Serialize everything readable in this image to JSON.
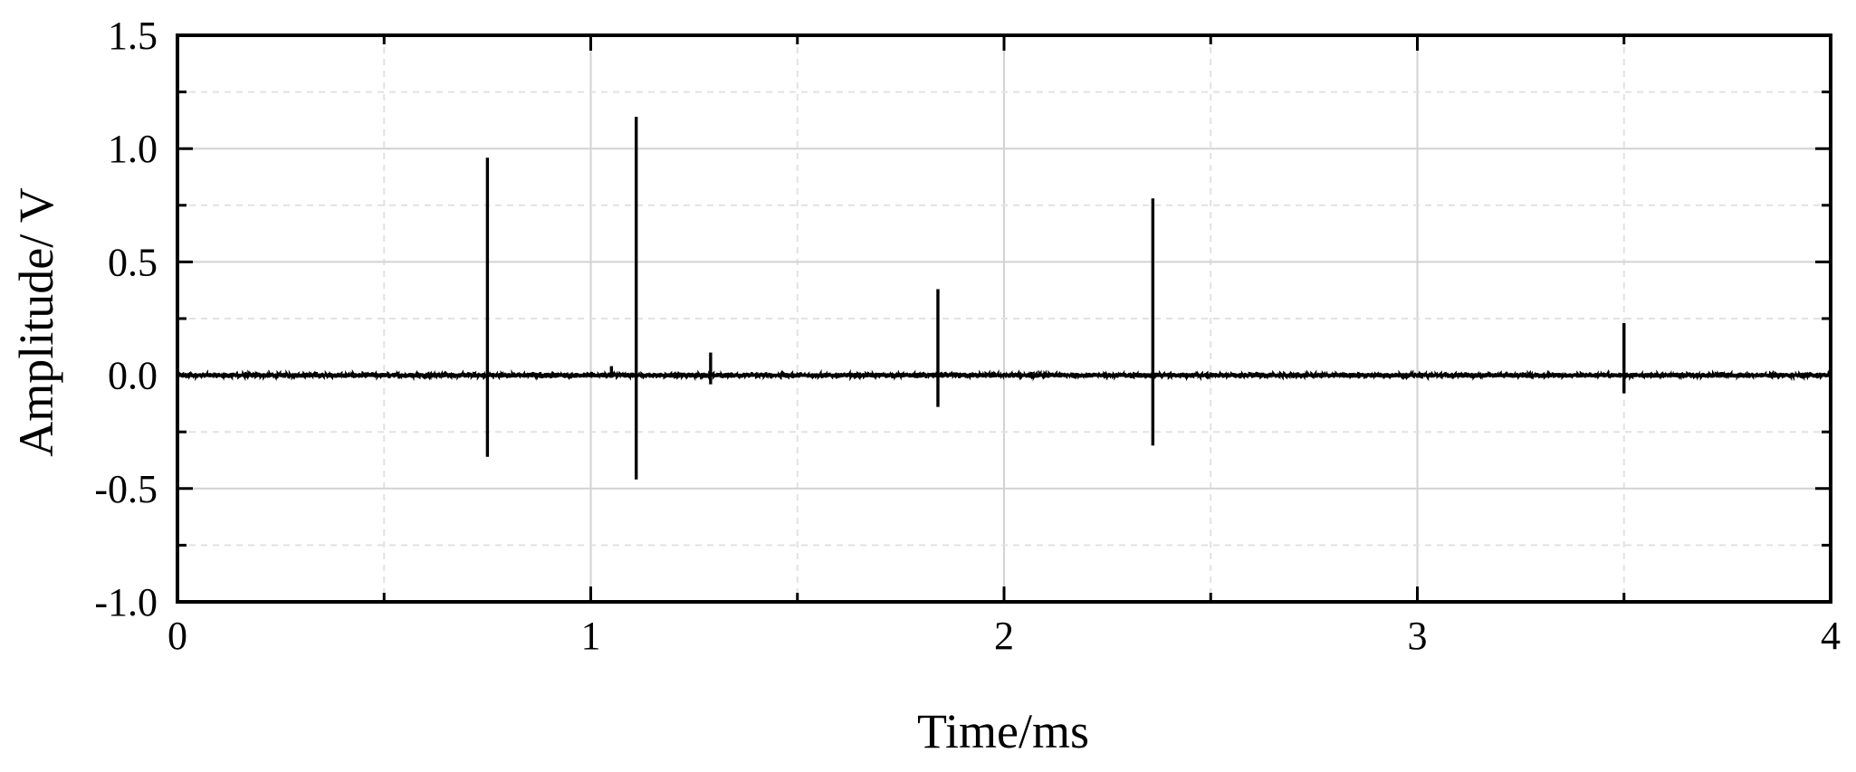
{
  "chart_data": {
    "type": "line",
    "title": "",
    "xlabel": "Time/ms",
    "ylabel": "Amplitude/ V",
    "xlim": [
      0,
      4
    ],
    "ylim": [
      -1.0,
      1.5
    ],
    "x_ticks": [
      "0",
      "1",
      "2",
      "3",
      "4"
    ],
    "y_ticks": [
      "-1.0",
      "-0.5",
      "0.0",
      "0.5",
      "1.0",
      "1.5"
    ],
    "grid": true,
    "legend": "none",
    "line_color": "#000000",
    "baseline_noise_amplitude": 0.02,
    "pulses": [
      {
        "x": 0.75,
        "peak": 0.96,
        "trough": -0.36
      },
      {
        "x": 1.05,
        "peak": 0.04,
        "trough": -0.01
      },
      {
        "x": 1.11,
        "peak": 1.14,
        "trough": -0.46
      },
      {
        "x": 1.29,
        "peak": 0.1,
        "trough": -0.04
      },
      {
        "x": 1.84,
        "peak": 0.38,
        "trough": -0.14
      },
      {
        "x": 2.36,
        "peak": 0.78,
        "trough": -0.31
      },
      {
        "x": 3.5,
        "peak": 0.23,
        "trough": -0.08
      }
    ]
  }
}
